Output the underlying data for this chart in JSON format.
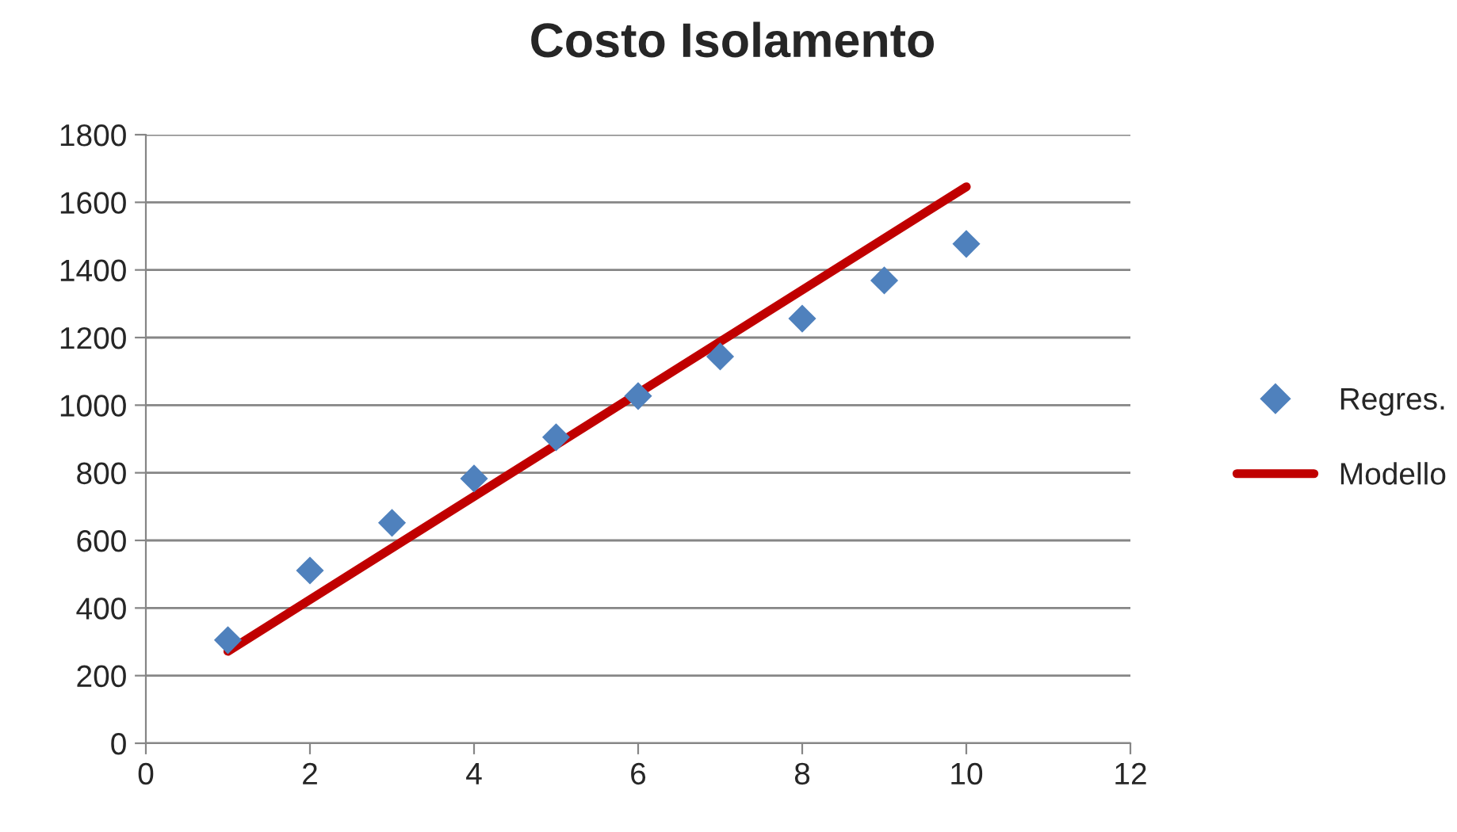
{
  "chart_data": {
    "type": "scatter",
    "title": "Costo Isolamento",
    "series": [
      {
        "name": "Regres.",
        "color": "#4f81bd",
        "marker": "diamond",
        "x": [
          1,
          2,
          3,
          4,
          5,
          6,
          7,
          8,
          9,
          10
        ],
        "values": [
          305,
          511,
          652,
          783,
          905,
          1027,
          1144,
          1256,
          1369,
          1477
        ]
      },
      {
        "name": "Modello",
        "type": "line",
        "color": "#c00000",
        "marker": "none",
        "line_style": "solid",
        "x": [
          1,
          10
        ],
        "values": [
          272,
          1646
        ]
      }
    ],
    "xlim": [
      0,
      12
    ],
    "xticks": [
      0,
      2,
      4,
      6,
      8,
      10,
      12
    ],
    "ylim": [
      0,
      1800
    ],
    "yticks": [
      0,
      200,
      400,
      600,
      800,
      1000,
      1200,
      1400,
      1600,
      1800
    ],
    "grid": "y",
    "legend": "right"
  }
}
